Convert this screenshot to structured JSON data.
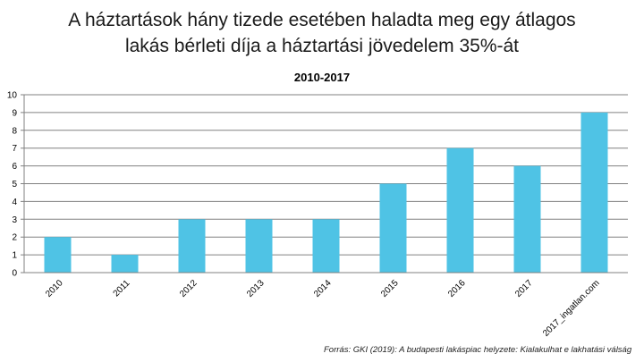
{
  "chart_data": {
    "type": "bar",
    "title": [
      "A háztartások hány tizede esetében haladta meg egy átlagos",
      "lakás bérleti díja a háztartási jövedelem 35%-át"
    ],
    "subtitle": "2010-2017",
    "categories": [
      "2010",
      "2011",
      "2012",
      "2013",
      "2014",
      "2015",
      "2016",
      "2017",
      "2017_ingatlan.com"
    ],
    "values": [
      2,
      1,
      3,
      3,
      3,
      5,
      7,
      6,
      9
    ],
    "ylim": [
      0,
      10
    ],
    "yticks": [
      "0",
      "1",
      "2",
      "3",
      "4",
      "5",
      "6",
      "7",
      "8",
      "9",
      "10"
    ],
    "grid": true,
    "bar_color": "#4fc3e5",
    "grid_color": "#808080"
  },
  "source": "Forrás: GKI (2019): A budapesti lakáspiac helyzete: Kialakulhat e lakhatási válság"
}
